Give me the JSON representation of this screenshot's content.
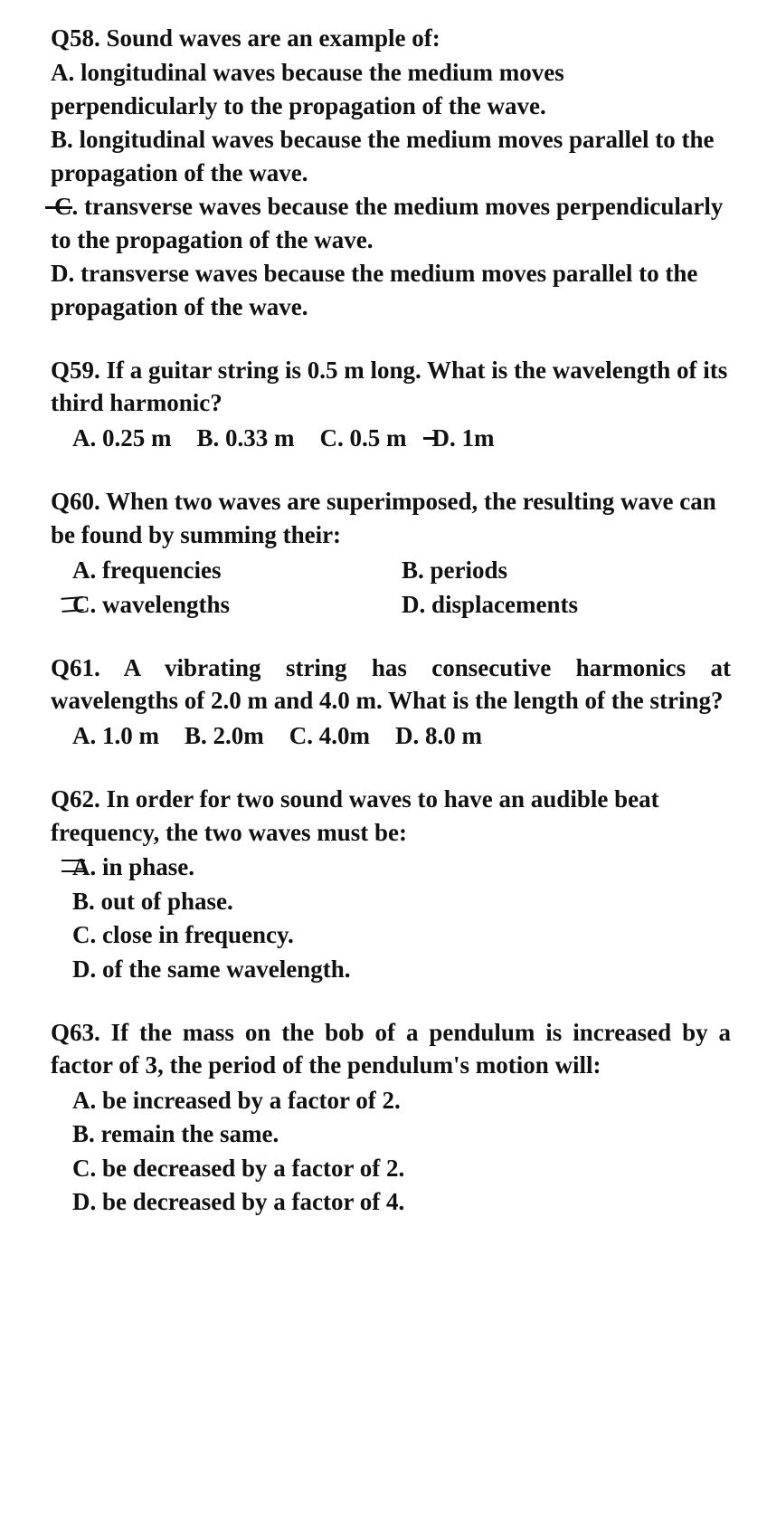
{
  "q58": {
    "stem": "Q58. Sound waves are an example of:",
    "A": "A. longitudinal waves because the medium moves perpendicularly to the propagation of the wave.",
    "B": "B. longitudinal waves because the medium moves parallel to the propagation of the wave.",
    "C_label": "C.",
    "C_rest": " transverse waves because the medium moves perpendicularly to the propagation of the wave.",
    "D": "D. transverse waves because the medium moves parallel to the propagation of the wave."
  },
  "q59": {
    "stem": "Q59. If a guitar string is 0.5 m long. What is the wavelength of its third harmonic?",
    "A": "A. 0.25 m",
    "B": "B. 0.33 m",
    "C": "C. 0.5 m",
    "D_label": "D.",
    "D_rest": " 1m"
  },
  "q60": {
    "stem": "Q60. When two waves are superimposed, the resulting wave can be found by summing their:",
    "A": "A. frequencies",
    "B": "B. periods",
    "C_label": "C.",
    "C_rest": " wavelengths",
    "D": "D. displacements"
  },
  "q61": {
    "stem": "Q61. A vibrating string has consecutive harmonics at wavelengths of 2.0 m and 4.0 m. What is the length of the string?",
    "A": "A. 1.0 m",
    "B": "B. 2.0m",
    "C": "C. 4.0m",
    "D": "D. 8.0 m"
  },
  "q62": {
    "stem": "Q62. In order for two sound waves to have an audible beat frequency, the two waves must be:",
    "A_label": "A.",
    "A_rest": " in phase.",
    "B": "B. out of phase.",
    "C": "C. close in frequency.",
    "D": "D. of the same wavelength."
  },
  "q63": {
    "stem": "Q63. If the mass on the bob of a pendulum is increased by a factor of 3, the period of the pendulum's motion will:",
    "A": "A. be increased by a factor of 2.",
    "B": "B. remain the same.",
    "C": "C. be decreased by a factor of 2.",
    "D": "D. be decreased by a factor of 4."
  }
}
